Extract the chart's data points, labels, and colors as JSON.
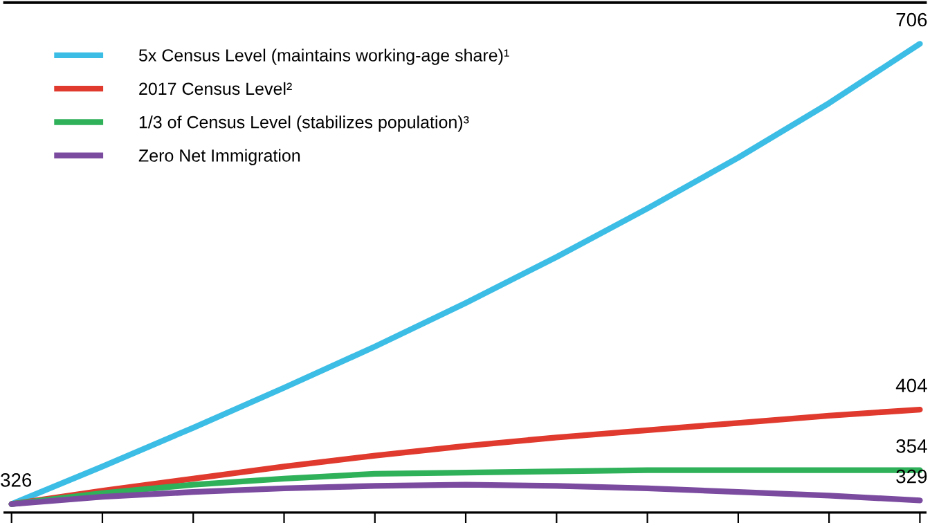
{
  "chart_data": {
    "type": "line",
    "categories": [
      null,
      null,
      null,
      null,
      null,
      null,
      null,
      null,
      null,
      null,
      null
    ],
    "series": [
      {
        "name": "5x Census Level (maintains working-age share)¹",
        "color": "#3bbde5",
        "values": [
          326,
          357,
          389,
          422,
          456,
          492,
          530,
          570,
          612,
          657,
          706
        ],
        "value_labels": [
          "326",
          null,
          null,
          null,
          null,
          null,
          null,
          null,
          null,
          null,
          "706"
        ]
      },
      {
        "name": "2017 Census Level²",
        "color": "#e0392d",
        "values": [
          326,
          337,
          347,
          357,
          366,
          374,
          381,
          387,
          393,
          399,
          404
        ],
        "value_labels": [
          null,
          null,
          null,
          null,
          null,
          null,
          null,
          null,
          null,
          null,
          "404"
        ]
      },
      {
        "name": "1/3 of Census Level (stabilizes population)³",
        "color": "#2fb15a",
        "values": [
          326,
          335,
          342,
          347,
          351,
          352,
          353,
          354,
          354,
          354,
          354
        ],
        "value_labels": [
          null,
          null,
          null,
          null,
          null,
          null,
          null,
          null,
          null,
          null,
          "354"
        ]
      },
      {
        "name": "Zero Net Immigration",
        "color": "#7b4ba0",
        "values": [
          326,
          332,
          336,
          339,
          341,
          342,
          341,
          339,
          336,
          333,
          329
        ],
        "value_labels": [
          null,
          null,
          null,
          null,
          null,
          null,
          null,
          null,
          null,
          null,
          "329"
        ]
      }
    ],
    "ylim": [
      319,
      740
    ],
    "grid": false,
    "legend": "top left",
    "marker": "none",
    "line_style": "solid"
  }
}
